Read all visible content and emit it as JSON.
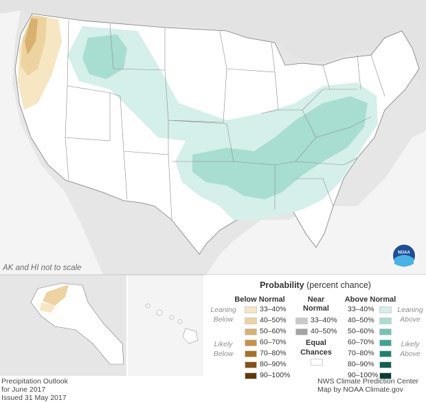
{
  "map": {
    "scale_note": "AK and HI not to scale"
  },
  "legend": {
    "title_bold": "Probability",
    "title_rest": " (percent chance)",
    "below": {
      "head": "Below Normal",
      "leaning_label": "Leaning Below",
      "likely_label": "Likely Below",
      "items": [
        {
          "label": "33–40%",
          "color": "#f7e6c2"
        },
        {
          "label": "40–50%",
          "color": "#ecd39f"
        },
        {
          "label": "50–60%",
          "color": "#d9b16e"
        },
        {
          "label": "60–70%",
          "color": "#c8913f"
        },
        {
          "label": "70–80%",
          "color": "#a8711f"
        },
        {
          "label": "80–90%",
          "color": "#86520f"
        },
        {
          "label": "90–100%",
          "color": "#5e3a08"
        }
      ]
    },
    "near": {
      "head_line1": "Near",
      "head_line2": "Normal",
      "items": [
        {
          "label": "33–40%",
          "color": "#c9c9c9"
        },
        {
          "label": "40–50%",
          "color": "#a3a3a3"
        }
      ]
    },
    "equal": {
      "line1": "Equal",
      "line2": "Chances",
      "color": "#ffffff"
    },
    "above": {
      "head": "Above Normal",
      "leaning_label": "Leaning Above",
      "likely_label": "Likely Above",
      "items": [
        {
          "label": "33–40%",
          "color": "#d5efea"
        },
        {
          "label": "40–50%",
          "color": "#a8ddd2"
        },
        {
          "label": "50–60%",
          "color": "#6fc4b5"
        },
        {
          "label": "60–70%",
          "color": "#3aa593"
        },
        {
          "label": "70–80%",
          "color": "#1a8370"
        },
        {
          "label": "80–90%",
          "color": "#0d6152"
        },
        {
          "label": "90–100%",
          "color": "#063e34"
        }
      ]
    }
  },
  "footer": {
    "left_line1": "Precipitation Outlook",
    "left_line2": "for June 2017",
    "left_line3": "Issued 31 May 2017",
    "right_line1": "NWS Climate Prediction Center",
    "right_line2": "Map by NOAA Climate.gov"
  },
  "logo_text": "NOAA",
  "colors": {
    "background_land": "#e6e6e6",
    "us_land": "#ffffff",
    "borders": "#7a7a7a",
    "above_lean": "#d5efea",
    "above_40": "#a8ddd2",
    "below_lean": "#f7e6c2",
    "below_40": "#ecd39f",
    "below_50": "#d9b16e"
  }
}
